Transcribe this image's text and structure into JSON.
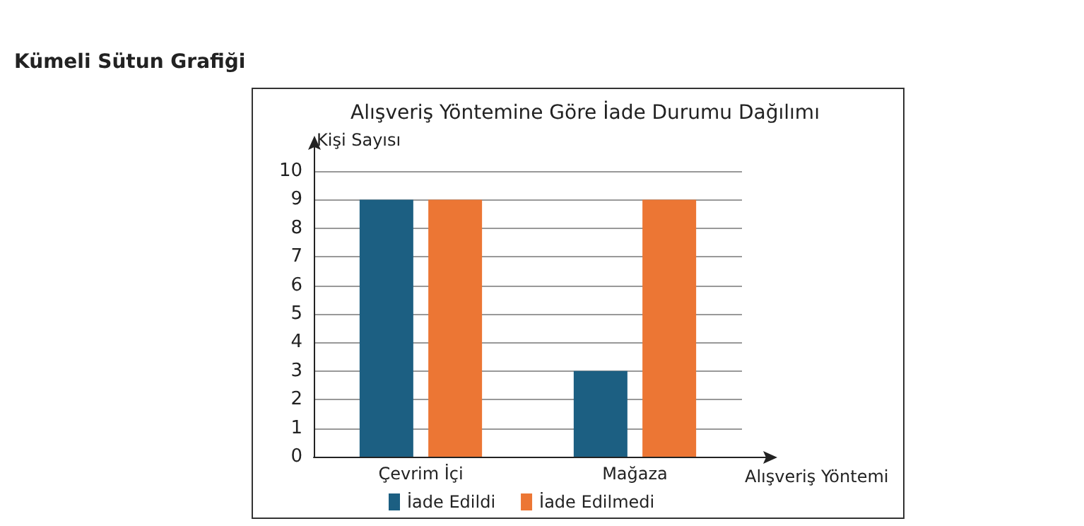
{
  "chart_data": {
    "type": "bar",
    "title": "Alışveriş Yöntemine Göre İade Durumu Dağılımı",
    "annotations": [
      "Kümeli Sütun Grafiği"
    ],
    "xlabel": "Alışveriş Yöntemi",
    "ylabel": "Kişi Sayısı",
    "categories": [
      "Çevrim İçi",
      "Mağaza"
    ],
    "series": [
      {
        "name": "İade Edildi",
        "color": "#1c5f82",
        "values": [
          9,
          3
        ]
      },
      {
        "name": "İade Edilmedi",
        "color": "#ec7634",
        "values": [
          9,
          9
        ]
      }
    ],
    "ylim": [
      0,
      10
    ],
    "yticks": [
      0,
      1,
      2,
      3,
      4,
      5,
      6,
      7,
      8,
      9,
      10
    ],
    "grid": "y",
    "legend": "bottom"
  }
}
